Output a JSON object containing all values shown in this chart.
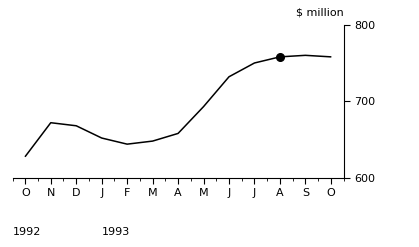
{
  "x_labels": [
    "O",
    "N",
    "D",
    "J",
    "F",
    "M",
    "A",
    "M",
    "J",
    "J",
    "A",
    "S",
    "O"
  ],
  "y_values": [
    628,
    672,
    668,
    652,
    644,
    648,
    658,
    693,
    732,
    750,
    758,
    760,
    758
  ],
  "ylim": [
    600,
    800
  ],
  "yticks": [
    600,
    700,
    800
  ],
  "ylabel": "$ million",
  "dot_index": 10,
  "line_color": "#000000",
  "background_color": "#ffffff",
  "year_1992_idx": 0,
  "year_1993_idx": 3
}
